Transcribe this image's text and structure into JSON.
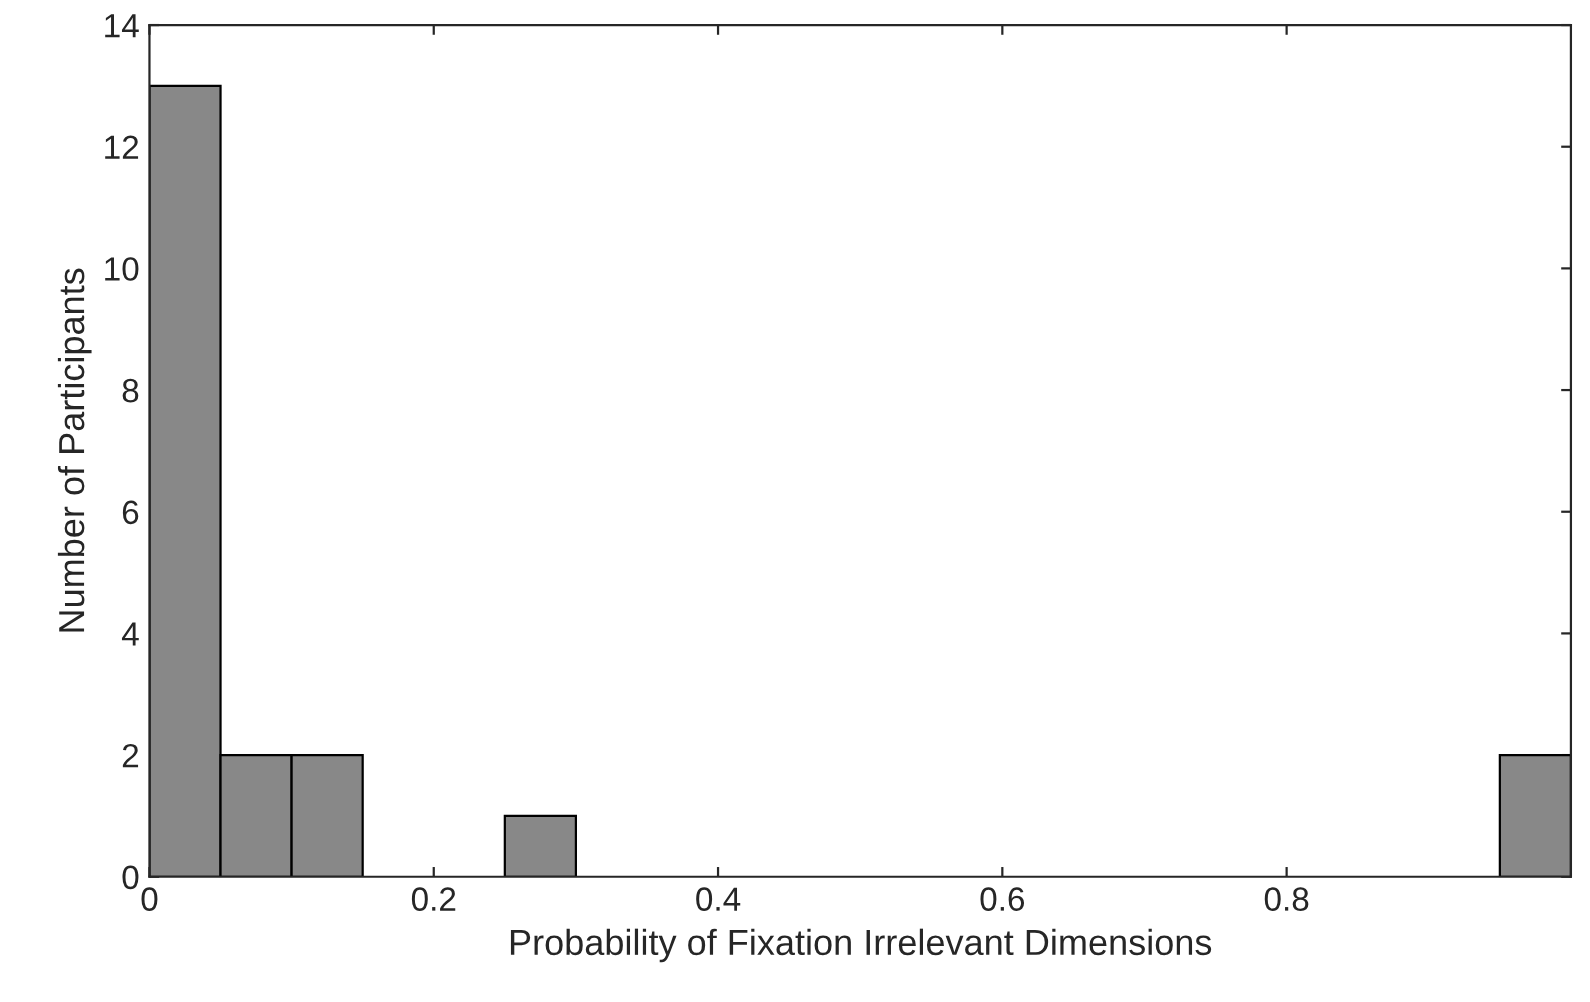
{
  "chart_data": {
    "type": "histogram",
    "xlabel": "Probability of Fixation Irrelevant Dimensions",
    "ylabel": "Number of Participants",
    "bins": [
      0,
      0.05,
      0.1,
      0.15,
      0.2,
      0.25,
      0.3,
      0.35,
      0.4,
      0.45,
      0.5,
      0.55,
      0.6,
      0.65,
      0.7,
      0.75,
      0.8,
      0.85,
      0.9,
      0.95,
      1.0
    ],
    "values": [
      13,
      2,
      2,
      0,
      0,
      1,
      0,
      0,
      0,
      0,
      0,
      0,
      0,
      0,
      0,
      0,
      0,
      0,
      0,
      2
    ],
    "color": "#888888",
    "xlim": [
      0,
      1.0
    ],
    "xticks": [
      0,
      0.2,
      0.4,
      0.6,
      0.8
    ],
    "ylim": [
      0,
      14
    ],
    "yticks": [
      0,
      2,
      4,
      6,
      8,
      10,
      12,
      14
    ],
    "grid": false
  }
}
